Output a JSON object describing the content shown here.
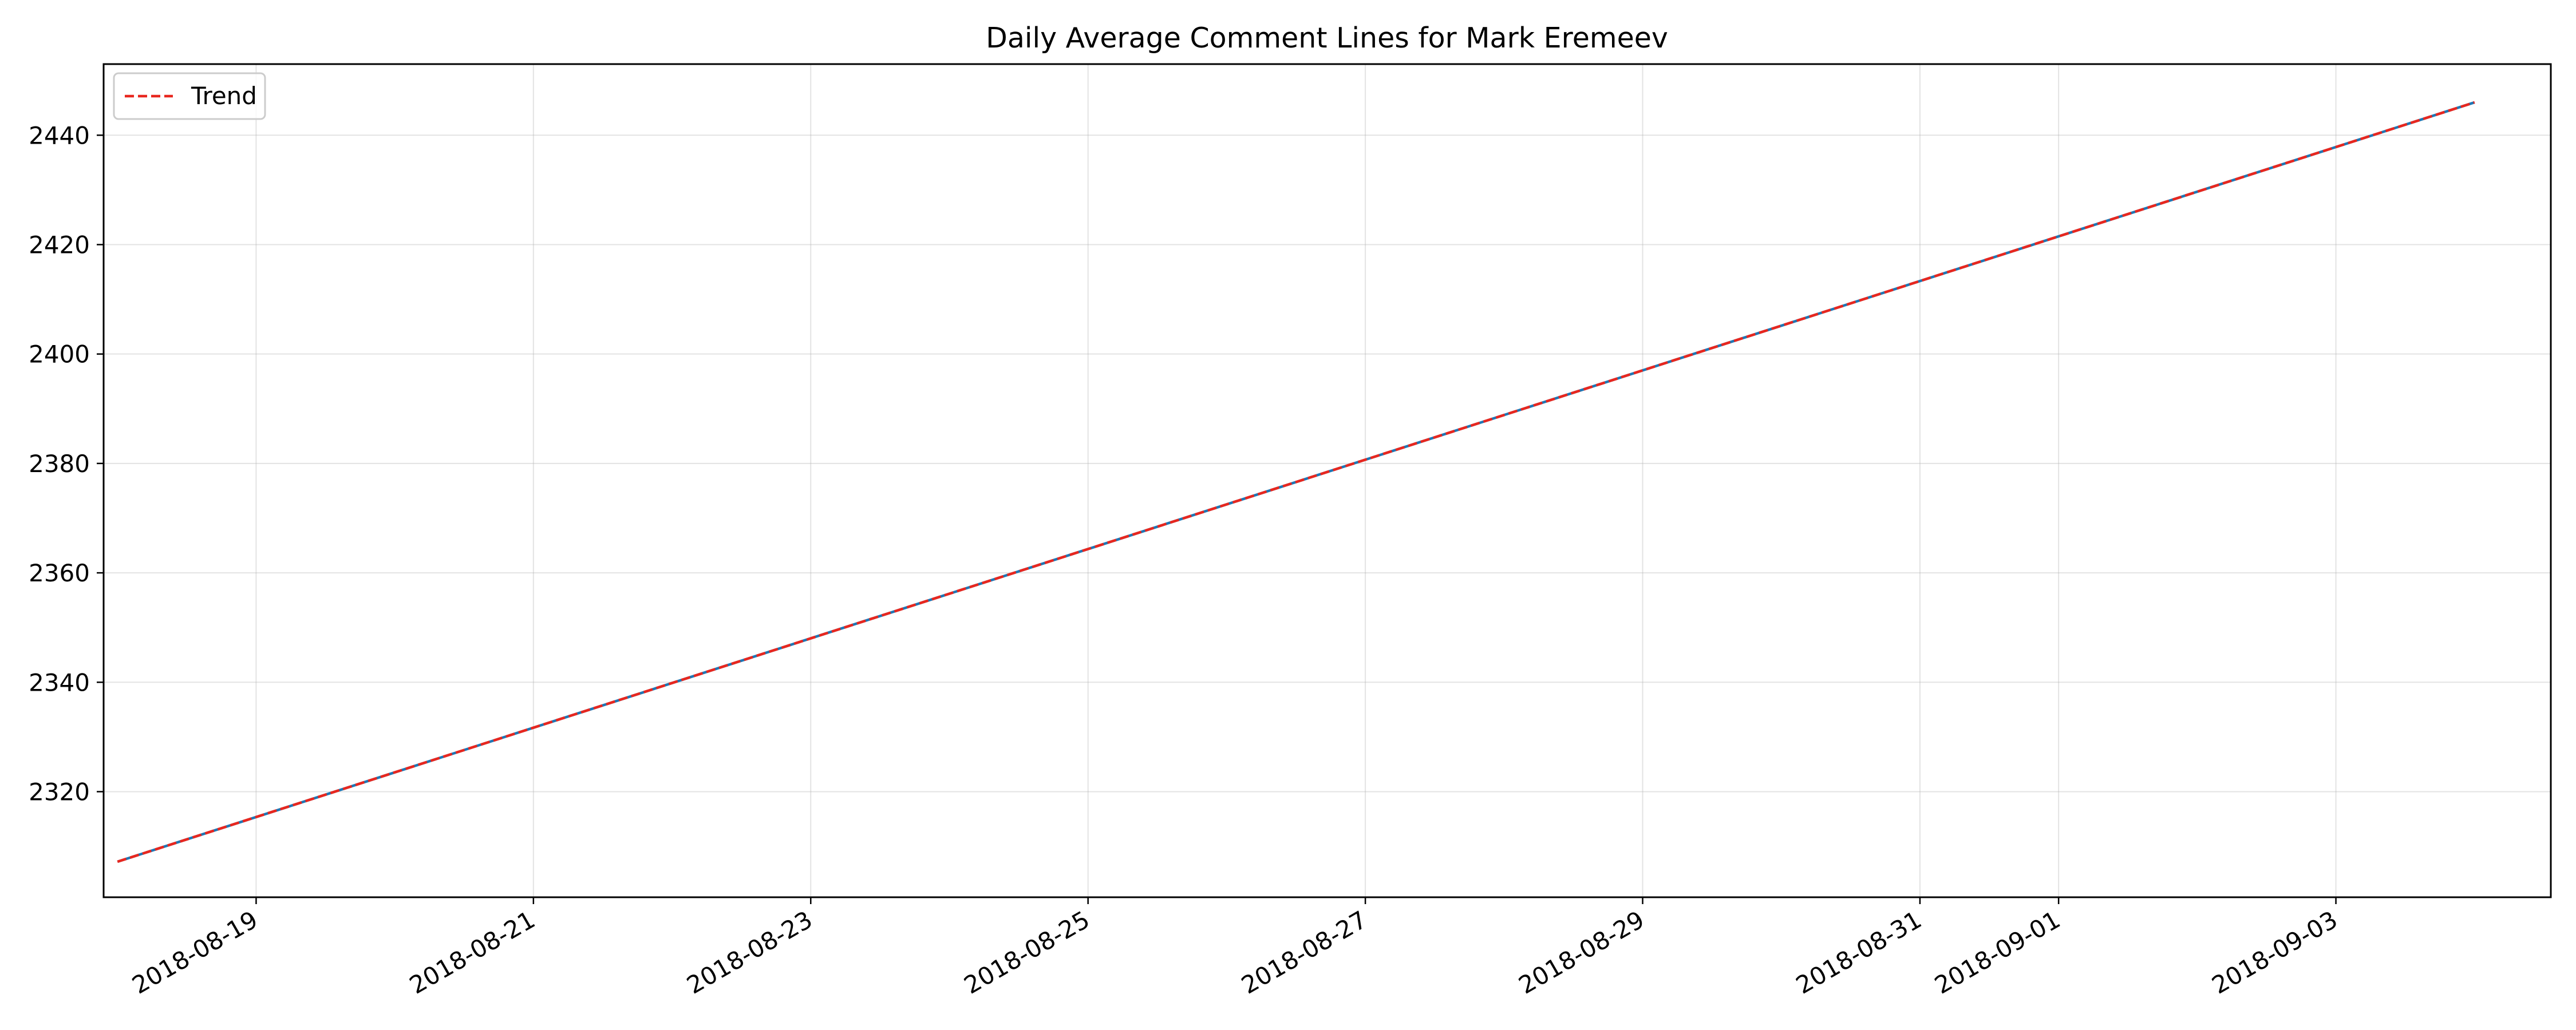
{
  "chart_data": {
    "type": "line",
    "title": "Daily Average Comment Lines for Mark Eremeev",
    "xlabel": "",
    "ylabel": "",
    "x_ticks": [
      "2018-08-19",
      "2018-08-21",
      "2018-08-23",
      "2018-08-25",
      "2018-08-27",
      "2018-08-29",
      "2018-08-31",
      "2018-09-01",
      "2018-09-03"
    ],
    "y_ticks": [
      2320,
      2340,
      2360,
      2380,
      2400,
      2420,
      2440
    ],
    "xlim": [
      "2018-08-17T21:36",
      "2018-09-04T13:12"
    ],
    "ylim": [
      2300.7,
      2453.0
    ],
    "grid": true,
    "legend": {
      "position": "top-left",
      "entries": [
        "Trend"
      ]
    },
    "series": [
      {
        "name": "",
        "style": "solid",
        "color": "#1f77b4",
        "x": [
          "2018-08-18",
          "2018-09-04"
        ],
        "y": [
          2307.2,
          2446.0
        ]
      },
      {
        "name": "Trend",
        "style": "dashed",
        "color": "#e8271f",
        "x": [
          "2018-08-18",
          "2018-09-04"
        ],
        "y": [
          2307.2,
          2446.0
        ]
      }
    ]
  }
}
